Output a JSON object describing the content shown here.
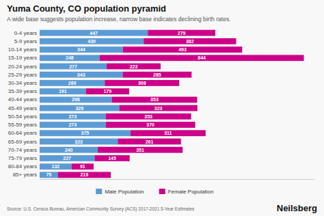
{
  "chart_data": {
    "type": "bar",
    "orientation": "horizontal",
    "stacked": true,
    "title": "Yuma County, CO population pyramid",
    "subtitle": "A wide base suggests population increase, narrow base indicates declining birth rates.",
    "annotations": [
      "Source: U.S. Census Bureau, American Community Survey (ACS) 2017-2021 5-Year Estimates",
      "Neilsberg"
    ],
    "categories": [
      "0-4 years",
      "5-9 years",
      "10-14 years",
      "15-19 years",
      "20-24 years",
      "25-29 years",
      "30-34 years",
      "35-39 years",
      "40-44 years",
      "45-49 years",
      "50-54 years",
      "55-59 years",
      "60-64 years",
      "65-69 years",
      "70-74 years",
      "75-79 years",
      "80-84 years",
      "85+ years"
    ],
    "series": [
      {
        "name": "Male Population",
        "color": "#5b9bd5",
        "values": [
          447,
          430,
          344,
          248,
          277,
          343,
          269,
          191,
          298,
          329,
          273,
          273,
          375,
          323,
          240,
          227,
          132,
          75
        ]
      },
      {
        "name": "Female Population",
        "color": "#cc0088",
        "values": [
          279,
          382,
          493,
          844,
          223,
          285,
          308,
          179,
          353,
          323,
          353,
          370,
          311,
          261,
          351,
          145,
          91,
          219
        ]
      }
    ],
    "xlim": [
      0,
      1135.68
    ],
    "tick_labels": "y",
    "data_labels": true,
    "grid": false,
    "legend": "bottom"
  }
}
